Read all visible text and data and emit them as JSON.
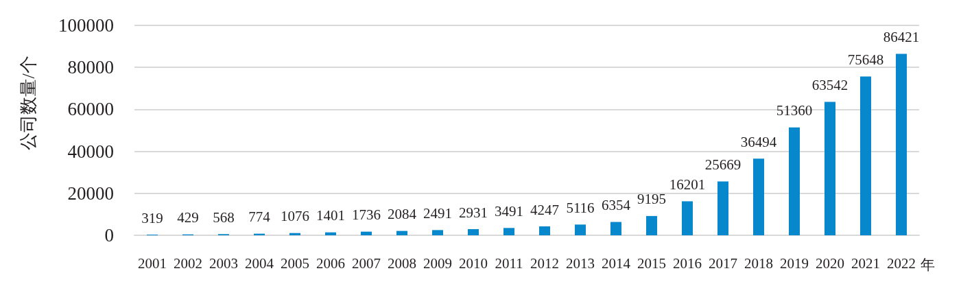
{
  "chart_data": {
    "type": "bar",
    "xlabel": "年",
    "ylabel": "公司数量/个",
    "categories": [
      "2001",
      "2002",
      "2003",
      "2004",
      "2005",
      "2006",
      "2007",
      "2008",
      "2009",
      "2010",
      "2011",
      "2012",
      "2013",
      "2014",
      "2015",
      "2016",
      "2017",
      "2018",
      "2019",
      "2020",
      "2021",
      "2022"
    ],
    "values": [
      319,
      429,
      568,
      774,
      1076,
      1401,
      1736,
      2084,
      2491,
      2931,
      3491,
      4247,
      5116,
      6354,
      9195,
      16201,
      25669,
      36494,
      51360,
      63542,
      75648,
      86421
    ],
    "color": "#0888cc",
    "ylim": [
      0,
      100000
    ],
    "yticks": [
      0,
      20000,
      40000,
      60000,
      80000,
      100000
    ],
    "grid": "y",
    "data_labels": true
  }
}
